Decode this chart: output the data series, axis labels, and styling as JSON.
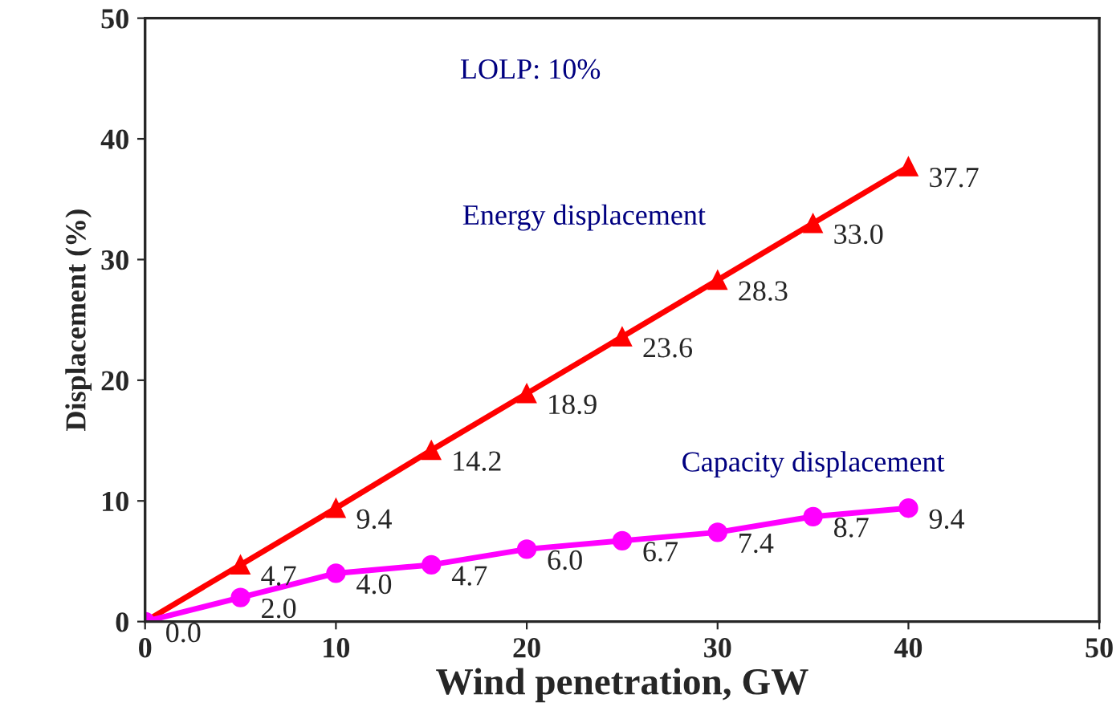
{
  "chart_data": {
    "type": "line",
    "xlabel": "Wind penetration, GW",
    "ylabel": "Displacement (%)",
    "x": [
      0,
      5,
      10,
      15,
      20,
      25,
      30,
      35,
      40
    ],
    "series": [
      {
        "name": "Energy displacement",
        "color": "#ff0000",
        "marker": "triangle",
        "values": [
          0.0,
          4.7,
          9.4,
          14.2,
          18.9,
          23.6,
          28.3,
          33.0,
          37.7
        ],
        "value_labels": [
          "0.0",
          "4.7",
          "9.4",
          "14.2",
          "18.9",
          "23.6",
          "28.3",
          "33.0",
          "37.7"
        ]
      },
      {
        "name": "Capacity displacement",
        "color": "#ff00ff",
        "marker": "circle",
        "values": [
          0.0,
          2.0,
          4.0,
          4.7,
          6.0,
          6.7,
          7.4,
          8.7,
          9.4
        ],
        "value_labels": [
          null,
          "2.0",
          "4.0",
          "4.7",
          "6.0",
          "6.7",
          "7.4",
          "8.7",
          "9.4"
        ]
      }
    ],
    "annotations": [
      "LOLP: 10%"
    ],
    "xlim": [
      0,
      50
    ],
    "ylim": [
      0,
      50
    ],
    "xticks": [
      0,
      10,
      20,
      30,
      40,
      50
    ],
    "yticks": [
      0,
      10,
      20,
      30,
      40,
      50
    ],
    "grid": false,
    "legend": false
  }
}
